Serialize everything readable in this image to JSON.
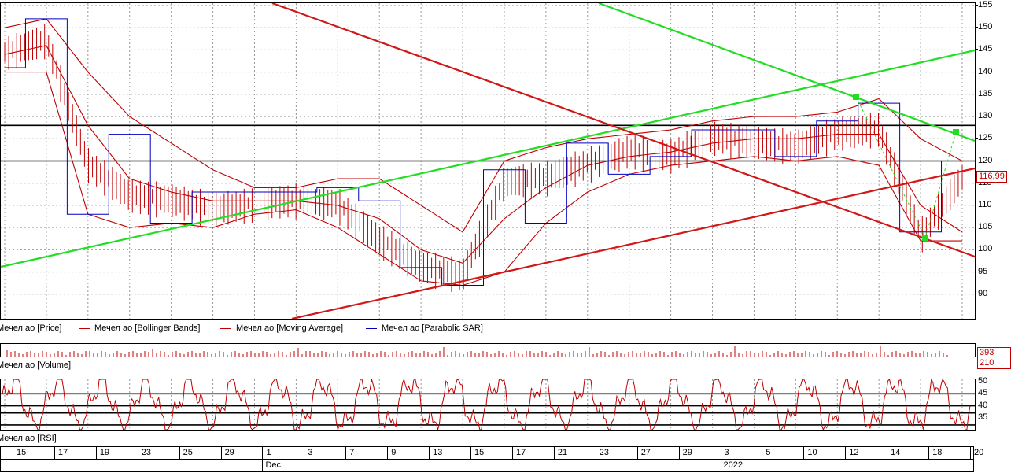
{
  "price_pane": {
    "y_ticks": [
      "155",
      "150",
      "145",
      "140",
      "135",
      "130",
      "125",
      "120",
      "115",
      "110",
      "105",
      "100",
      "95",
      "90"
    ],
    "last_price_badge": "116,99"
  },
  "legend": [
    {
      "label": "Мечел ао [Price]",
      "color": "#c00000"
    },
    {
      "label": "Мечел ао [Bollinger Bands]",
      "color": "#c00000"
    },
    {
      "label": "Мечел ао [Moving Average]",
      "color": "#c00000"
    },
    {
      "label": "Мечел ао [Parabolic SAR]",
      "color": "#0000c0"
    }
  ],
  "volume_pane": {
    "caption": "Мечел ао [Volume]",
    "last_value_badge": "393 210"
  },
  "rsi_pane": {
    "caption": "Мечел ао [RSI]",
    "y_ticks": [
      "50",
      "45",
      "40",
      "35"
    ]
  },
  "x_axis": {
    "day_labels": [
      "15",
      "17",
      "19",
      "23",
      "25",
      "29",
      "1",
      "3",
      "7",
      "9",
      "13",
      "15",
      "17",
      "21",
      "23",
      "27",
      "29",
      "3",
      "5",
      "10",
      "12",
      "14",
      "18",
      "20"
    ],
    "month_labels": [
      "Dec",
      "2022"
    ]
  },
  "chart_data": {
    "type": "line",
    "title": "",
    "xlabel": "",
    "ylabel": "",
    "ylim": [
      85,
      155
    ],
    "grid": true,
    "x": [
      "15",
      "17",
      "19",
      "23",
      "25",
      "29",
      "1",
      "3",
      "7",
      "9",
      "13",
      "15",
      "17",
      "21",
      "23",
      "27",
      "29",
      "3",
      "5",
      "10",
      "12",
      "14",
      "18",
      "20"
    ],
    "series": [
      {
        "name": "Мечел ао [Price]",
        "values": [
          145,
          148,
          120,
          113,
          112,
          110,
          111,
          112,
          111,
          103,
          97,
          95,
          116,
          117,
          120,
          123,
          122,
          126,
          125,
          124,
          127,
          128,
          104,
          117
        ]
      },
      {
        "name": "Мечел ао [Moving Average]",
        "values": [
          144,
          146,
          128,
          116,
          113,
          111,
          111,
          111,
          110,
          107,
          100,
          97,
          107,
          114,
          119,
          121,
          122,
          124,
          125,
          125,
          126,
          126,
          110,
          104
        ]
      },
      {
        "name": "Мечел ао [Parabolic SAR]",
        "values": [
          141,
          152,
          108,
          126,
          106,
          113,
          113,
          113,
          114,
          111,
          96,
          92,
          118,
          106,
          124,
          117,
          121,
          127,
          127,
          121,
          129,
          133,
          104,
          120
        ]
      },
      {
        "name": "Мечел ао [Bollinger Bands]",
        "values": [
          150,
          152,
          140,
          130,
          124,
          118,
          114,
          114,
          116,
          116,
          110,
          104,
          120,
          123,
          125,
          126,
          127,
          129,
          130,
          130,
          131,
          134,
          125,
          120
        ]
      },
      {
        "name": "Мечел ао [Bollinger Bands]",
        "values": [
          140,
          140,
          108,
          105,
          106,
          105,
          108,
          109,
          105,
          99,
          93,
          92,
          95,
          106,
          113,
          117,
          119,
          120,
          121,
          120,
          121,
          119,
          102,
          102
        ]
      }
    ],
    "levels": [
      128,
      120
    ],
    "rsi_levels": [
      45,
      40,
      37,
      32
    ],
    "rsi_ylim": [
      30,
      51
    ]
  }
}
